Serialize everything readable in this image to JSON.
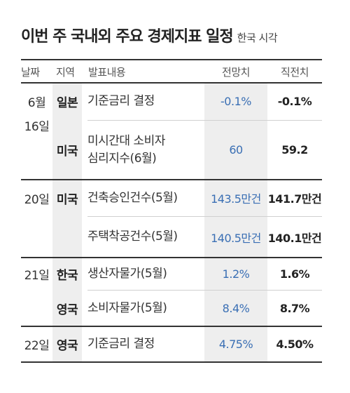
{
  "title": "이번 주 국내외 주요 경제지표 일정",
  "subtitle": "한국 시각",
  "headers": {
    "date": "날짜",
    "country": "지역",
    "content": "발표내용",
    "forecast": "전망치",
    "previous": "직전치"
  },
  "rows": [
    {
      "date": "6월",
      "country": "일본",
      "content": "기준금리 결정",
      "forecast": "-0.1%",
      "previous": "-0.1%"
    },
    {
      "date": "16일",
      "country": "미국",
      "content_line1": "미시간대 소비자",
      "content_line2": "심리지수(6월)",
      "forecast": "60",
      "previous": "59.2"
    },
    {
      "date": "20일",
      "country": "미국",
      "content": "건축승인건수(5월)",
      "forecast": "143.5만건",
      "previous": "141.7만건"
    },
    {
      "date": "",
      "country": "",
      "content": "주택착공건수(5월)",
      "forecast": "140.5만건",
      "previous": "140.1만건"
    },
    {
      "date": "21일",
      "country": "한국",
      "content": "생산자물가(5월)",
      "forecast": "1.2%",
      "previous": "1.6%"
    },
    {
      "date": "",
      "country": "영국",
      "content": "소비자물가(5월)",
      "forecast": "8.4%",
      "previous": "8.7%"
    },
    {
      "date": "22일",
      "country": "영국",
      "content": "기준금리 결정",
      "forecast": "4.75%",
      "previous": "4.50%"
    }
  ]
}
